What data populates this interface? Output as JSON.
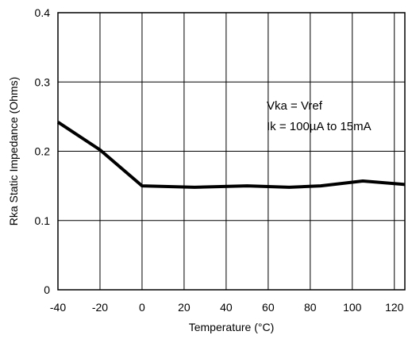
{
  "chart_data": {
    "type": "line",
    "title": "",
    "xlabel": "Temperature (°C)",
    "ylabel": "Rka Static Impedance (Ohms)",
    "xlim": [
      -40,
      125
    ],
    "ylim": [
      0,
      0.4
    ],
    "x_ticks": [
      -40,
      -20,
      0,
      20,
      40,
      60,
      80,
      100,
      120
    ],
    "y_ticks": [
      0,
      0.1,
      0.2,
      0.3,
      0.4
    ],
    "x_tick_labels": [
      "-40",
      "-20",
      "0",
      "20",
      "40",
      "60",
      "80",
      "100",
      "120"
    ],
    "y_tick_labels": [
      "0",
      "0.1",
      "0.2",
      "0.3",
      "0.4"
    ],
    "grid": true,
    "series": [
      {
        "x": [
          -40,
          -20,
          0,
          25,
          50,
          70,
          85,
          105,
          125
        ],
        "y": [
          0.242,
          0.202,
          0.15,
          0.148,
          0.15,
          0.148,
          0.15,
          0.157,
          0.152
        ]
      }
    ],
    "annotations": [
      "Vka = Vref",
      "Ik = 100µA to 15mA"
    ]
  }
}
